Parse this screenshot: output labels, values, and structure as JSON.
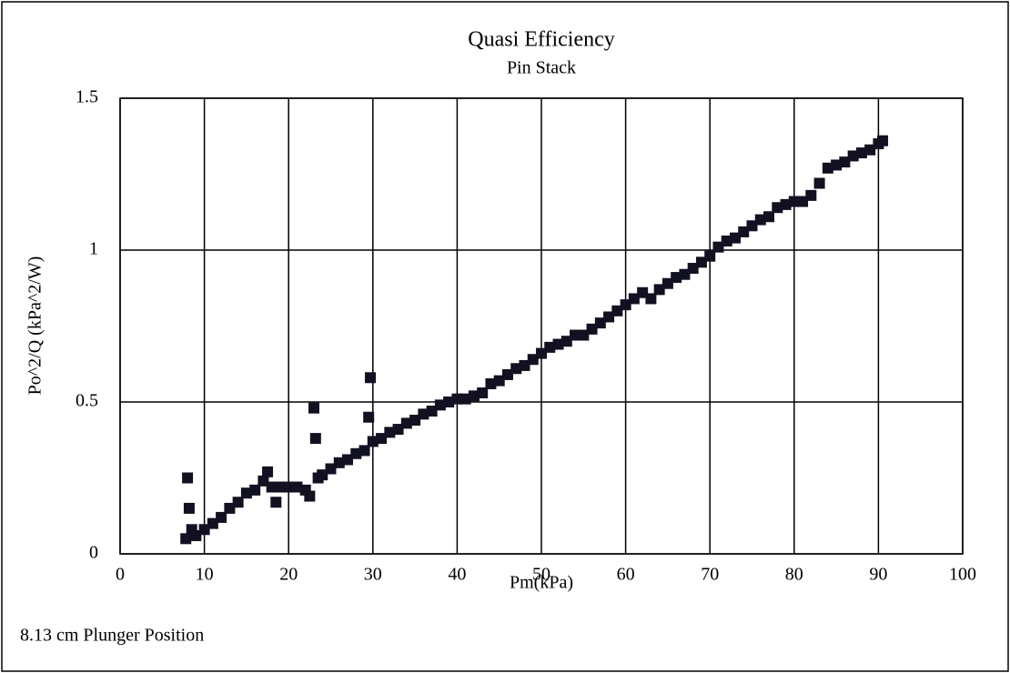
{
  "chart_data": {
    "type": "scatter",
    "title": "Quasi Efficiency",
    "subtitle": "Pin Stack",
    "x_label": "Pm(kPa)",
    "y_label": "Po^2/Q (kPa^2/W)",
    "annotation": "8.13 cm Plunger Position",
    "color": "#111122",
    "grid": true,
    "xlim": [
      0,
      100
    ],
    "xticks": [
      0,
      10,
      20,
      30,
      40,
      50,
      60,
      70,
      80,
      90,
      100
    ],
    "ylim": [
      0,
      1.5
    ],
    "yticks": [
      0,
      0.5,
      1,
      1.5
    ],
    "x": [
      7.8,
      8,
      8.2,
      8.5,
      9,
      10,
      11,
      12,
      13,
      14,
      15,
      16,
      17,
      17.5,
      18,
      18.5,
      19,
      20,
      21,
      22,
      22.5,
      23,
      23.2,
      23.5,
      24,
      25,
      26,
      27,
      28,
      29,
      29.5,
      29.7,
      30,
      31,
      32,
      33,
      34,
      35,
      36,
      37,
      38,
      39,
      40,
      41,
      42,
      43,
      44,
      45,
      46,
      47,
      48,
      49,
      50,
      51,
      52,
      53,
      54,
      55,
      56,
      57,
      58,
      59,
      60,
      61,
      62,
      63,
      64,
      65,
      66,
      67,
      68,
      69,
      70,
      71,
      72,
      73,
      74,
      75,
      76,
      77,
      78,
      79,
      80,
      81,
      82,
      83,
      84,
      85,
      86,
      87,
      88,
      89,
      90,
      90.5
    ],
    "values": [
      0.05,
      0.25,
      0.15,
      0.08,
      0.06,
      0.08,
      0.1,
      0.12,
      0.15,
      0.17,
      0.2,
      0.21,
      0.24,
      0.27,
      0.22,
      0.17,
      0.22,
      0.22,
      0.22,
      0.21,
      0.19,
      0.48,
      0.38,
      0.25,
      0.26,
      0.28,
      0.3,
      0.31,
      0.33,
      0.34,
      0.45,
      0.58,
      0.37,
      0.38,
      0.4,
      0.41,
      0.43,
      0.44,
      0.46,
      0.47,
      0.49,
      0.5,
      0.51,
      0.51,
      0.52,
      0.53,
      0.56,
      0.57,
      0.59,
      0.61,
      0.62,
      0.64,
      0.66,
      0.68,
      0.69,
      0.7,
      0.72,
      0.72,
      0.74,
      0.76,
      0.78,
      0.8,
      0.82,
      0.84,
      0.86,
      0.84,
      0.87,
      0.89,
      0.91,
      0.92,
      0.94,
      0.96,
      0.98,
      1.01,
      1.03,
      1.04,
      1.06,
      1.08,
      1.1,
      1.11,
      1.14,
      1.15,
      1.16,
      1.16,
      1.18,
      1.22,
      1.27,
      1.28,
      1.29,
      1.31,
      1.32,
      1.33,
      1.35,
      1.36
    ]
  }
}
